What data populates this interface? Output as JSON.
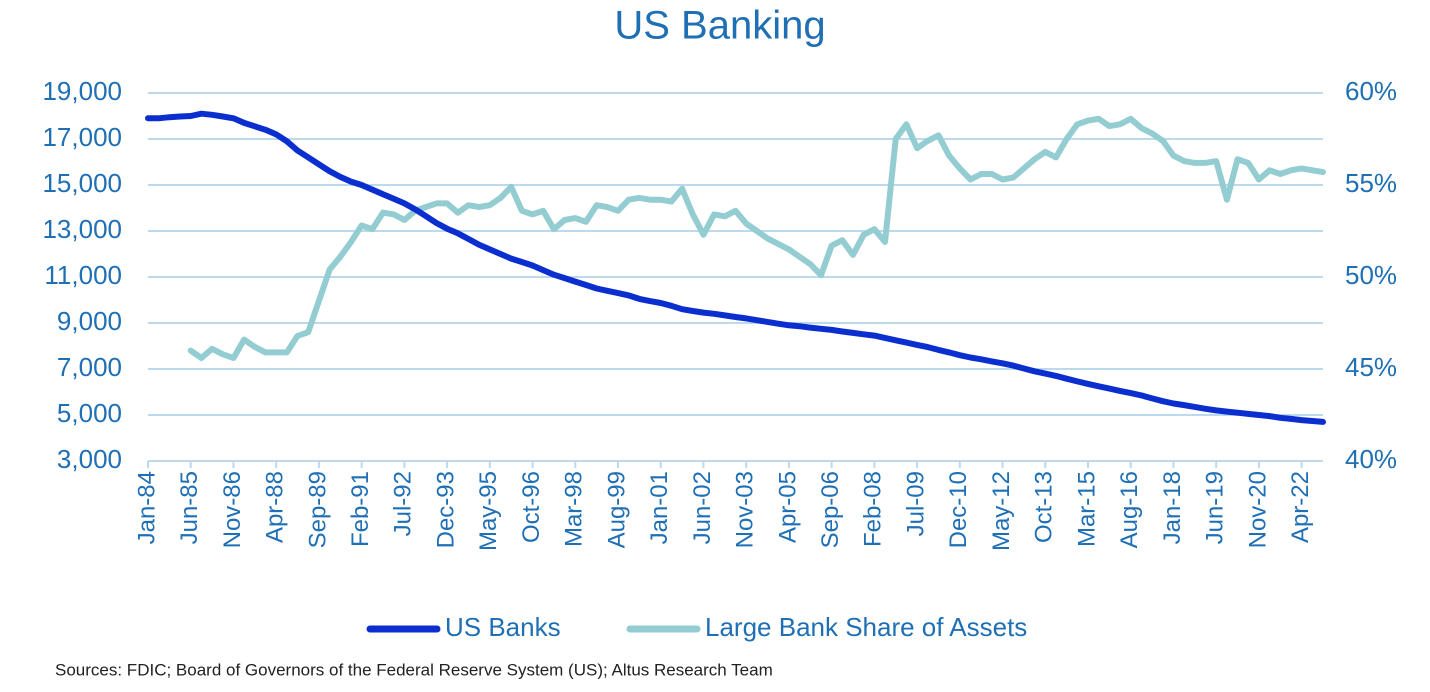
{
  "chart_data": {
    "type": "line",
    "title": "US Banking",
    "source": "Sources: FDIC; Board of Governors of the Federal Reserve System (US); Altus Research Team",
    "categories": [
      "Jan-84",
      null,
      null,
      null,
      "Jun-85",
      null,
      null,
      null,
      "Nov-86",
      null,
      null,
      null,
      "Apr-88",
      null,
      null,
      null,
      "Sep-89",
      null,
      null,
      null,
      "Feb-91",
      null,
      null,
      null,
      "Jul-92",
      null,
      null,
      null,
      "Dec-93",
      null,
      null,
      null,
      "May-95",
      null,
      null,
      null,
      "Oct-96",
      null,
      null,
      null,
      "Mar-98",
      null,
      null,
      null,
      "Aug-99",
      null,
      null,
      null,
      "Jan-01",
      null,
      null,
      null,
      "Jun-02",
      null,
      null,
      null,
      "Nov-03",
      null,
      null,
      null,
      "Apr-05",
      null,
      null,
      null,
      "Sep-06",
      null,
      null,
      null,
      "Feb-08",
      null,
      null,
      null,
      "Jul-09",
      null,
      null,
      null,
      "Dec-10",
      null,
      null,
      null,
      "May-12",
      null,
      null,
      null,
      "Oct-13",
      null,
      null,
      null,
      "Mar-15",
      null,
      null,
      null,
      "Aug-16",
      null,
      null,
      null,
      "Jan-18",
      null,
      null,
      null,
      "Jun-19",
      null,
      null,
      null,
      "Nov-20",
      null,
      null,
      null,
      "Apr-22",
      null,
      null
    ],
    "series": [
      {
        "name": "US Banks",
        "color": "#0b2fcf",
        "axis": "y",
        "values": [
          17900,
          17900,
          17950,
          17980,
          18000,
          18100,
          18050,
          17980,
          17900,
          17700,
          17550,
          17400,
          17200,
          16900,
          16500,
          16200,
          15900,
          15600,
          15350,
          15150,
          15000,
          14800,
          14600,
          14400,
          14200,
          13950,
          13650,
          13350,
          13100,
          12900,
          12650,
          12400,
          12200,
          12000,
          11800,
          11650,
          11500,
          11300,
          11100,
          10950,
          10800,
          10650,
          10500,
          10400,
          10300,
          10200,
          10050,
          9950,
          9870,
          9750,
          9600,
          9520,
          9450,
          9400,
          9330,
          9260,
          9200,
          9120,
          9050,
          8970,
          8900,
          8860,
          8800,
          8750,
          8700,
          8630,
          8570,
          8510,
          8450,
          8350,
          8250,
          8150,
          8050,
          7950,
          7830,
          7720,
          7600,
          7500,
          7420,
          7330,
          7250,
          7150,
          7020,
          6900,
          6800,
          6700,
          6580,
          6460,
          6350,
          6250,
          6150,
          6050,
          5950,
          5850,
          5720,
          5600,
          5500,
          5430,
          5350,
          5270,
          5200,
          5150,
          5100,
          5050,
          5000,
          4950,
          4880,
          4830,
          4780,
          4740,
          4700
        ]
      },
      {
        "name": "Large Bank Share of Assets",
        "color": "#93cdd2",
        "axis": "y2",
        "values": [
          null,
          null,
          null,
          null,
          46.0,
          45.6,
          46.1,
          45.8,
          45.6,
          46.6,
          46.2,
          45.9,
          45.9,
          45.9,
          46.8,
          47.0,
          48.7,
          50.4,
          51.1,
          51.9,
          52.8,
          52.6,
          53.5,
          53.4,
          53.1,
          53.6,
          53.8,
          54.0,
          54.0,
          53.5,
          53.9,
          53.8,
          53.9,
          54.3,
          54.9,
          53.6,
          53.4,
          53.6,
          52.6,
          53.1,
          53.2,
          53.0,
          53.9,
          53.8,
          53.6,
          54.2,
          54.3,
          54.2,
          54.2,
          54.1,
          54.8,
          53.4,
          52.3,
          53.4,
          53.3,
          53.6,
          52.9,
          52.5,
          52.1,
          51.8,
          51.5,
          51.1,
          50.7,
          50.1,
          51.7,
          52.0,
          51.2,
          52.3,
          52.6,
          51.9,
          57.5,
          58.3,
          57.0,
          57.4,
          57.7,
          56.6,
          55.9,
          55.3,
          55.6,
          55.6,
          55.3,
          55.4,
          55.9,
          56.4,
          56.8,
          56.5,
          57.5,
          58.3,
          58.5,
          58.6,
          58.2,
          58.3,
          58.6,
          58.1,
          57.8,
          57.4,
          56.6,
          56.3,
          56.2,
          56.2,
          56.3,
          54.2,
          56.4,
          56.2,
          55.3,
          55.8,
          55.6,
          55.8,
          55.9,
          55.8,
          55.7
        ]
      }
    ],
    "ylim": [
      3000,
      19000
    ],
    "yticks": [
      {
        "value": 3000,
        "label": "3,000"
      },
      {
        "value": 5000,
        "label": "5,000"
      },
      {
        "value": 7000,
        "label": "7,000"
      },
      {
        "value": 9000,
        "label": "9,000"
      },
      {
        "value": 11000,
        "label": "11,000"
      },
      {
        "value": 13000,
        "label": "13,000"
      },
      {
        "value": 15000,
        "label": "15,000"
      },
      {
        "value": 17000,
        "label": "17,000"
      },
      {
        "value": 19000,
        "label": "19,000"
      }
    ],
    "y2lim": [
      40,
      60
    ],
    "y2ticks": [
      {
        "value": 40,
        "label": "40%"
      },
      {
        "value": 45,
        "label": "45%"
      },
      {
        "value": 50,
        "label": "50%"
      },
      {
        "value": 55,
        "label": "55%"
      },
      {
        "value": 60,
        "label": "60%"
      }
    ],
    "grid": true,
    "legend": "bottom"
  }
}
